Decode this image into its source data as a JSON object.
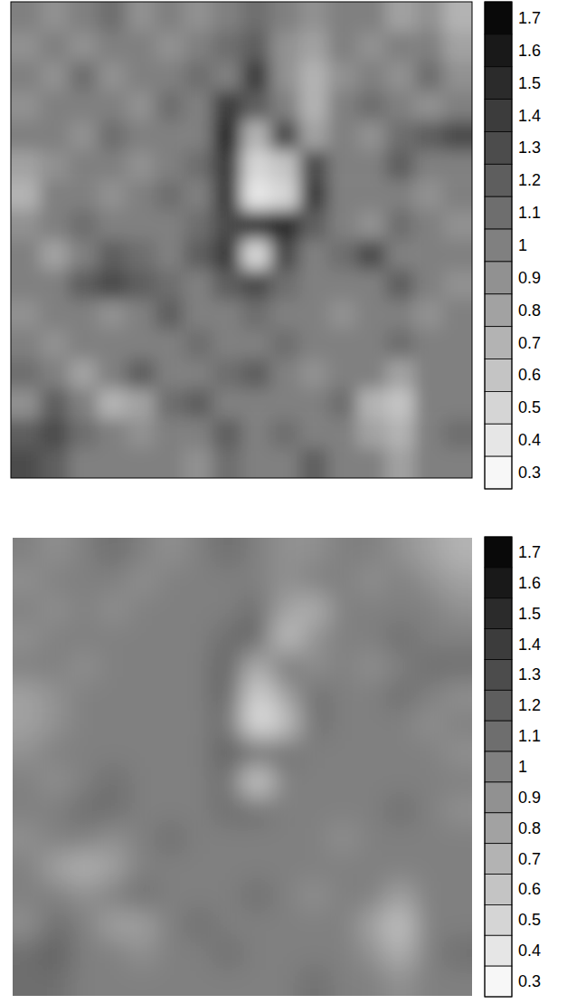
{
  "chart_data": [
    {
      "type": "heatmap",
      "tick_labels": false,
      "cells": [
        [
          1.0,
          0.9,
          1.0,
          1.1,
          0.9,
          1.0,
          0.9,
          1.0,
          1.1,
          1.0,
          0.9,
          1.0,
          1.0,
          0.8,
          0.9,
          0.7
        ],
        [
          0.9,
          1.0,
          0.9,
          1.0,
          1.0,
          0.9,
          1.0,
          1.1,
          1.2,
          0.9,
          0.8,
          1.0,
          0.9,
          1.0,
          1.0,
          0.8
        ],
        [
          1.0,
          0.9,
          1.1,
          0.9,
          1.0,
          1.0,
          1.1,
          1.0,
          1.4,
          0.9,
          0.7,
          0.9,
          1.0,
          0.9,
          1.1,
          0.9
        ],
        [
          0.9,
          1.0,
          1.0,
          1.0,
          0.9,
          1.1,
          1.0,
          1.4,
          1.2,
          1.0,
          0.7,
          1.0,
          1.1,
          1.0,
          0.9,
          1.0
        ],
        [
          1.0,
          1.0,
          0.9,
          1.1,
          1.0,
          1.0,
          1.0,
          1.5,
          0.7,
          1.3,
          0.8,
          1.0,
          0.9,
          1.1,
          1.2,
          1.3
        ],
        [
          0.8,
          0.9,
          1.0,
          1.0,
          0.9,
          1.0,
          1.1,
          1.4,
          0.5,
          0.6,
          1.3,
          1.0,
          1.0,
          1.2,
          1.0,
          1.0
        ],
        [
          0.7,
          1.0,
          1.0,
          0.9,
          1.0,
          1.1,
          1.0,
          1.4,
          0.4,
          0.5,
          1.4,
          1.0,
          1.0,
          1.0,
          0.9,
          1.0
        ],
        [
          0.9,
          1.0,
          1.1,
          1.0,
          1.0,
          1.0,
          1.1,
          1.3,
          1.4,
          1.5,
          1.2,
          1.0,
          0.9,
          1.1,
          1.0,
          0.9
        ],
        [
          1.0,
          0.8,
          1.0,
          1.2,
          1.1,
          1.0,
          1.2,
          1.4,
          0.5,
          1.3,
          1.0,
          1.1,
          1.3,
          1.0,
          1.0,
          1.0
        ],
        [
          1.0,
          1.0,
          1.2,
          1.3,
          1.2,
          1.1,
          1.0,
          1.2,
          1.3,
          1.1,
          1.0,
          1.0,
          1.0,
          1.2,
          1.0,
          0.9
        ],
        [
          0.9,
          1.0,
          1.0,
          0.9,
          1.0,
          1.2,
          1.0,
          1.0,
          1.1,
          1.0,
          1.0,
          0.9,
          1.0,
          1.0,
          0.9,
          1.0
        ],
        [
          1.0,
          0.9,
          1.0,
          1.0,
          1.0,
          1.0,
          1.1,
          1.0,
          1.0,
          1.1,
          1.0,
          1.0,
          1.0,
          1.1,
          1.0,
          1.0
        ],
        [
          1.1,
          1.0,
          0.8,
          1.0,
          1.2,
          1.0,
          1.0,
          1.1,
          1.2,
          1.0,
          0.9,
          1.0,
          1.0,
          0.8,
          1.0,
          1.0
        ],
        [
          0.9,
          1.2,
          1.0,
          0.7,
          0.8,
          1.1,
          1.2,
          1.0,
          1.0,
          1.0,
          1.0,
          1.1,
          0.7,
          0.6,
          1.0,
          1.0
        ],
        [
          1.2,
          1.3,
          1.1,
          1.0,
          0.9,
          1.0,
          1.0,
          1.2,
          1.0,
          1.1,
          1.0,
          1.0,
          0.8,
          0.7,
          1.0,
          1.1
        ],
        [
          1.3,
          1.2,
          1.0,
          1.0,
          1.0,
          1.0,
          0.9,
          1.1,
          1.0,
          1.0,
          1.2,
          1.0,
          1.0,
          0.8,
          1.0,
          1.0
        ]
      ],
      "colorbar": {
        "range": [
          0.25,
          1.75
        ],
        "ticks": [
          1.7,
          1.6,
          1.5,
          1.4,
          1.3,
          1.2,
          1.1,
          1,
          0.9,
          0.8,
          0.7,
          0.6,
          0.5,
          0.4,
          0.3
        ]
      }
    },
    {
      "type": "heatmap",
      "tick_labels": false,
      "cells": [
        [
          1.0,
          0.9,
          1.0,
          1.1,
          1.0,
          0.9,
          1.0,
          1.1,
          1.0,
          0.9,
          0.9,
          1.0,
          1.0,
          0.9,
          0.8,
          0.7
        ],
        [
          0.9,
          1.0,
          1.0,
          1.0,
          0.9,
          1.0,
          1.0,
          1.0,
          1.0,
          0.9,
          1.0,
          1.0,
          0.9,
          1.0,
          0.9,
          0.8
        ],
        [
          1.0,
          0.9,
          1.0,
          0.9,
          1.0,
          1.0,
          1.0,
          1.0,
          1.1,
          0.8,
          0.7,
          1.0,
          1.0,
          1.0,
          1.0,
          0.9
        ],
        [
          0.9,
          1.0,
          1.0,
          1.0,
          1.0,
          1.0,
          1.0,
          1.1,
          1.2,
          0.6,
          0.9,
          1.0,
          1.0,
          1.1,
          1.0,
          1.0
        ],
        [
          1.0,
          1.0,
          0.9,
          1.0,
          1.0,
          1.0,
          1.0,
          1.2,
          0.7,
          1.1,
          0.9,
          1.0,
          0.9,
          1.0,
          1.1,
          1.1
        ],
        [
          0.8,
          0.9,
          1.0,
          1.0,
          1.0,
          1.0,
          1.0,
          1.2,
          0.5,
          0.8,
          1.1,
          1.0,
          1.0,
          1.1,
          1.0,
          0.9
        ],
        [
          0.8,
          0.9,
          1.0,
          1.0,
          1.0,
          1.0,
          1.0,
          1.1,
          0.4,
          0.6,
          1.1,
          1.0,
          1.0,
          1.0,
          0.9,
          1.0
        ],
        [
          0.9,
          1.0,
          1.0,
          1.0,
          1.0,
          1.0,
          1.0,
          1.2,
          1.2,
          1.1,
          1.0,
          1.0,
          1.0,
          1.0,
          1.0,
          0.9
        ],
        [
          1.0,
          0.9,
          1.0,
          1.1,
          1.0,
          1.0,
          1.0,
          1.1,
          0.5,
          1.0,
          1.0,
          1.0,
          1.0,
          1.0,
          1.0,
          1.0
        ],
        [
          1.0,
          1.0,
          1.1,
          1.1,
          1.0,
          1.0,
          1.0,
          1.1,
          1.1,
          1.0,
          1.0,
          1.0,
          1.0,
          1.1,
          1.0,
          0.9
        ],
        [
          0.9,
          1.0,
          1.0,
          0.9,
          1.0,
          1.1,
          1.0,
          1.0,
          1.0,
          1.0,
          1.0,
          0.9,
          1.0,
          1.0,
          1.0,
          1.0
        ],
        [
          1.0,
          0.8,
          0.7,
          0.8,
          1.0,
          1.0,
          1.0,
          1.0,
          1.0,
          1.0,
          1.0,
          1.0,
          1.0,
          1.0,
          1.0,
          1.0
        ],
        [
          1.0,
          1.0,
          0.9,
          1.0,
          1.1,
          1.0,
          1.0,
          1.0,
          1.1,
          1.0,
          0.9,
          1.0,
          1.0,
          0.8,
          1.0,
          1.0
        ],
        [
          0.9,
          1.1,
          1.0,
          0.8,
          0.8,
          1.0,
          1.1,
          1.0,
          1.0,
          1.0,
          1.0,
          1.0,
          0.8,
          0.6,
          1.0,
          1.0
        ],
        [
          1.1,
          1.2,
          1.0,
          1.0,
          0.9,
          1.0,
          1.0,
          1.1,
          1.0,
          1.0,
          1.0,
          1.0,
          0.9,
          0.7,
          1.0,
          1.1
        ],
        [
          1.1,
          1.1,
          1.0,
          1.0,
          1.0,
          1.0,
          1.0,
          1.0,
          1.0,
          1.0,
          1.1,
          1.0,
          1.0,
          0.9,
          1.0,
          1.0
        ]
      ],
      "colorbar": {
        "range": [
          0.25,
          1.75
        ],
        "ticks": [
          1.7,
          1.6,
          1.5,
          1.4,
          1.3,
          1.2,
          1.1,
          1,
          0.9,
          0.8,
          0.7,
          0.6,
          0.5,
          0.4,
          0.3
        ]
      }
    }
  ]
}
